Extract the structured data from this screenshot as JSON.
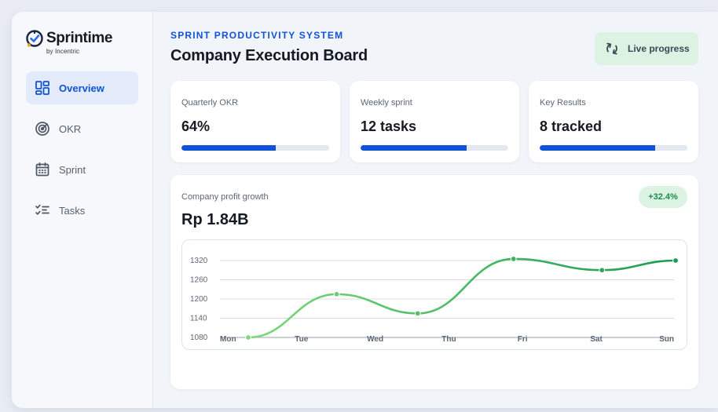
{
  "brand": {
    "name": "Sprintime",
    "sub": "by Incentric",
    "logo_icon": "clock-check-icon"
  },
  "nav": {
    "items": [
      {
        "label": "Overview",
        "icon": "dashboard-grid-icon",
        "active": true
      },
      {
        "label": "OKR",
        "icon": "target-icon",
        "active": false
      },
      {
        "label": "Sprint",
        "icon": "calendar-icon",
        "active": false
      },
      {
        "label": "Tasks",
        "icon": "checklist-icon",
        "active": false
      }
    ]
  },
  "header": {
    "kicker": "SPRINT PRODUCTIVITY SYSTEM",
    "title": "Company Execution Board",
    "live_button": "Live progress",
    "live_icon": "refresh-icon"
  },
  "stats": [
    {
      "label": "Quarterly OKR",
      "value": "64%",
      "progress": 0.64
    },
    {
      "label": "Weekly sprint",
      "value": "12 tasks",
      "progress": 0.72
    },
    {
      "label": "Key Results",
      "value": "8 tracked",
      "progress": 0.78
    }
  ],
  "profit": {
    "label": "Company profit growth",
    "value": "Rp 1.84B",
    "badge": "+32.4%"
  },
  "colors": {
    "accent": "#0f52d8",
    "success": "#1b8a4a",
    "line_start": "#7ed97a",
    "line_end": "#1a9a55"
  },
  "chart_data": {
    "type": "line",
    "categories": [
      "Mon",
      "Tue",
      "Wed",
      "Thu",
      "Fri",
      "Sat",
      "Sun"
    ],
    "y_ticks": [
      1320,
      1260,
      1200,
      1140,
      1080
    ],
    "ylim": [
      1080,
      1320
    ],
    "points": [
      {
        "x": 0.0,
        "y": 1080
      },
      {
        "x": 1.2,
        "y": 1215
      },
      {
        "x": 2.3,
        "y": 1155
      },
      {
        "x": 3.6,
        "y": 1325
      },
      {
        "x": 4.8,
        "y": 1290
      },
      {
        "x": 5.8,
        "y": 1320
      }
    ],
    "grid": true,
    "legend": "none"
  }
}
